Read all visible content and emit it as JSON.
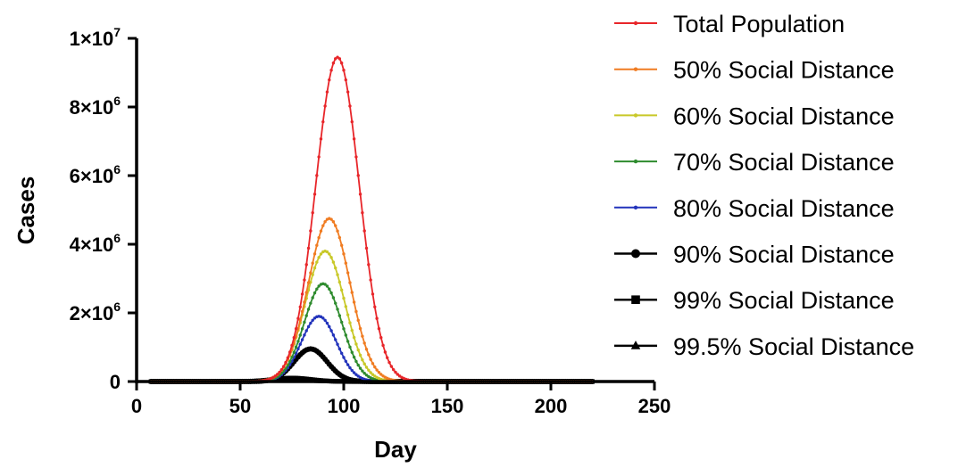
{
  "chart_data": {
    "type": "line",
    "xlabel": "Day",
    "ylabel": "Cases",
    "xlim": [
      0,
      250
    ],
    "ylim": [
      0,
      10000000
    ],
    "x_ticks": [
      0,
      50,
      100,
      150,
      200,
      250
    ],
    "x_tick_labels": [
      "0",
      "50",
      "100",
      "150",
      "200",
      "250"
    ],
    "y_ticks": [
      0,
      2000000,
      4000000,
      6000000,
      8000000,
      10000000
    ],
    "y_tick_labels": [
      {
        "base": "0",
        "exp": ""
      },
      {
        "base": "2×10",
        "exp": "6"
      },
      {
        "base": "4×10",
        "exp": "6"
      },
      {
        "base": "6×10",
        "exp": "6"
      },
      {
        "base": "8×10",
        "exp": "6"
      },
      {
        "base": "1×10",
        "exp": "7"
      }
    ],
    "grid": false,
    "legend_position": "right",
    "x_start": 7,
    "x_end": 220,
    "series": [
      {
        "name": "Total  Population",
        "color": "#e8262a",
        "marker": "dot",
        "peak_day": 97,
        "peak": 9450000,
        "width": 10.5
      },
      {
        "name": "50% Social Distance",
        "color": "#f07c22",
        "marker": "dot",
        "peak_day": 93,
        "peak": 4750000,
        "width": 10
      },
      {
        "name": "60% Social Distance",
        "color": "#c8c828",
        "marker": "dot",
        "peak_day": 91,
        "peak": 3800000,
        "width": 9.5
      },
      {
        "name": "70% Social Distance",
        "color": "#2e8b2e",
        "marker": "dot",
        "peak_day": 90,
        "peak": 2850000,
        "width": 9
      },
      {
        "name": "80% Social Distance",
        "color": "#2233bb",
        "marker": "dot",
        "peak_day": 88,
        "peak": 1900000,
        "width": 8.5
      },
      {
        "name": "90% Social Distance",
        "color": "#000000",
        "marker": "circle",
        "peak_day": 84,
        "peak": 950000,
        "width": 8
      },
      {
        "name": "99% Social Distance",
        "color": "#000000",
        "marker": "square",
        "peak_day": 75,
        "peak": 100000,
        "width": 9
      },
      {
        "name": "99.5% Social Distance",
        "color": "#000000",
        "marker": "triangle",
        "peak_day": 72,
        "peak": 50000,
        "width": 9
      }
    ]
  }
}
